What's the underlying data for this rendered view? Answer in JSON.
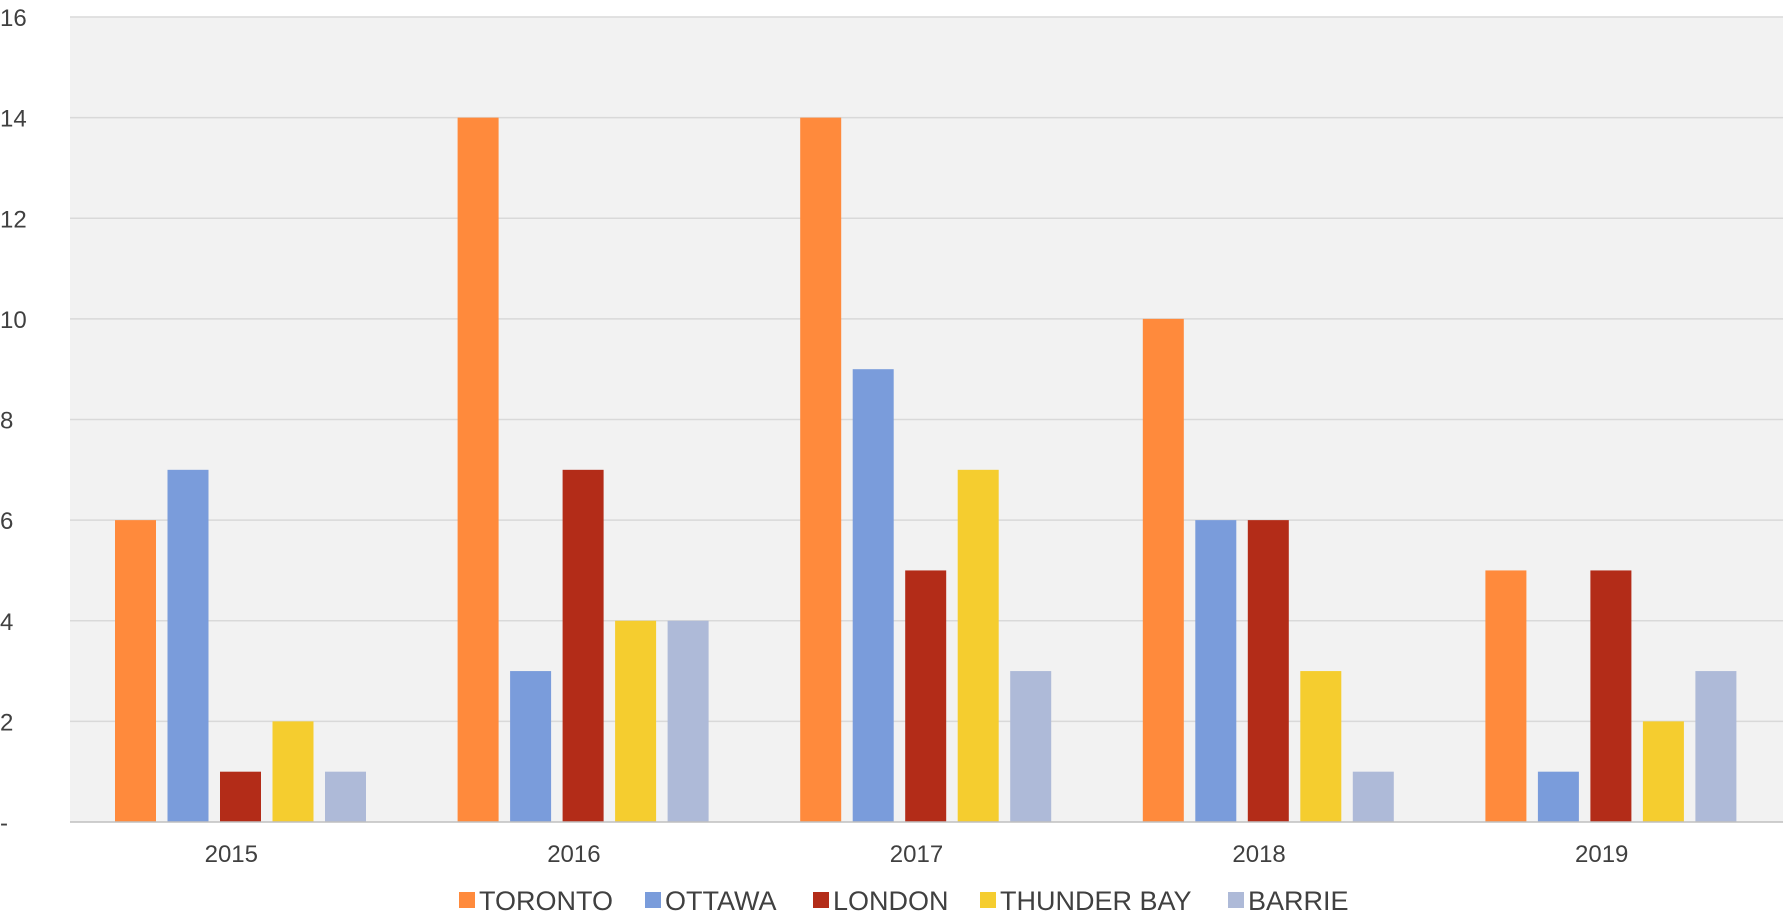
{
  "chart_data": {
    "type": "bar",
    "title": "",
    "xlabel": "",
    "ylabel": "",
    "categories": [
      "2015",
      "2016",
      "2017",
      "2018",
      "2019"
    ],
    "ylim": [
      0,
      16
    ],
    "yticks": [
      0,
      2,
      4,
      6,
      8,
      10,
      12,
      14,
      16
    ],
    "ytick_labels": [
      "-",
      "2",
      "4",
      "6",
      "8",
      "10",
      "12",
      "14",
      "16"
    ],
    "grid": true,
    "legend_position": "bottom",
    "series": [
      {
        "name": "TORONTO",
        "color": "#FF8A3C",
        "values": [
          6,
          14,
          14,
          10,
          5
        ]
      },
      {
        "name": "OTTAWA",
        "color": "#7A9CDB",
        "values": [
          7,
          3,
          9,
          6,
          1
        ]
      },
      {
        "name": "LONDON",
        "color": "#B32C18",
        "values": [
          1,
          7,
          5,
          6,
          5
        ]
      },
      {
        "name": "THUNDER BAY",
        "color": "#F5CD2F",
        "values": [
          2,
          4,
          7,
          3,
          2
        ]
      },
      {
        "name": "BARRIE",
        "color": "#AEBAD8",
        "values": [
          1,
          4,
          3,
          1,
          3
        ]
      }
    ],
    "plot_background": "#F2F2F2",
    "grid_color": "#D9D9D9"
  }
}
